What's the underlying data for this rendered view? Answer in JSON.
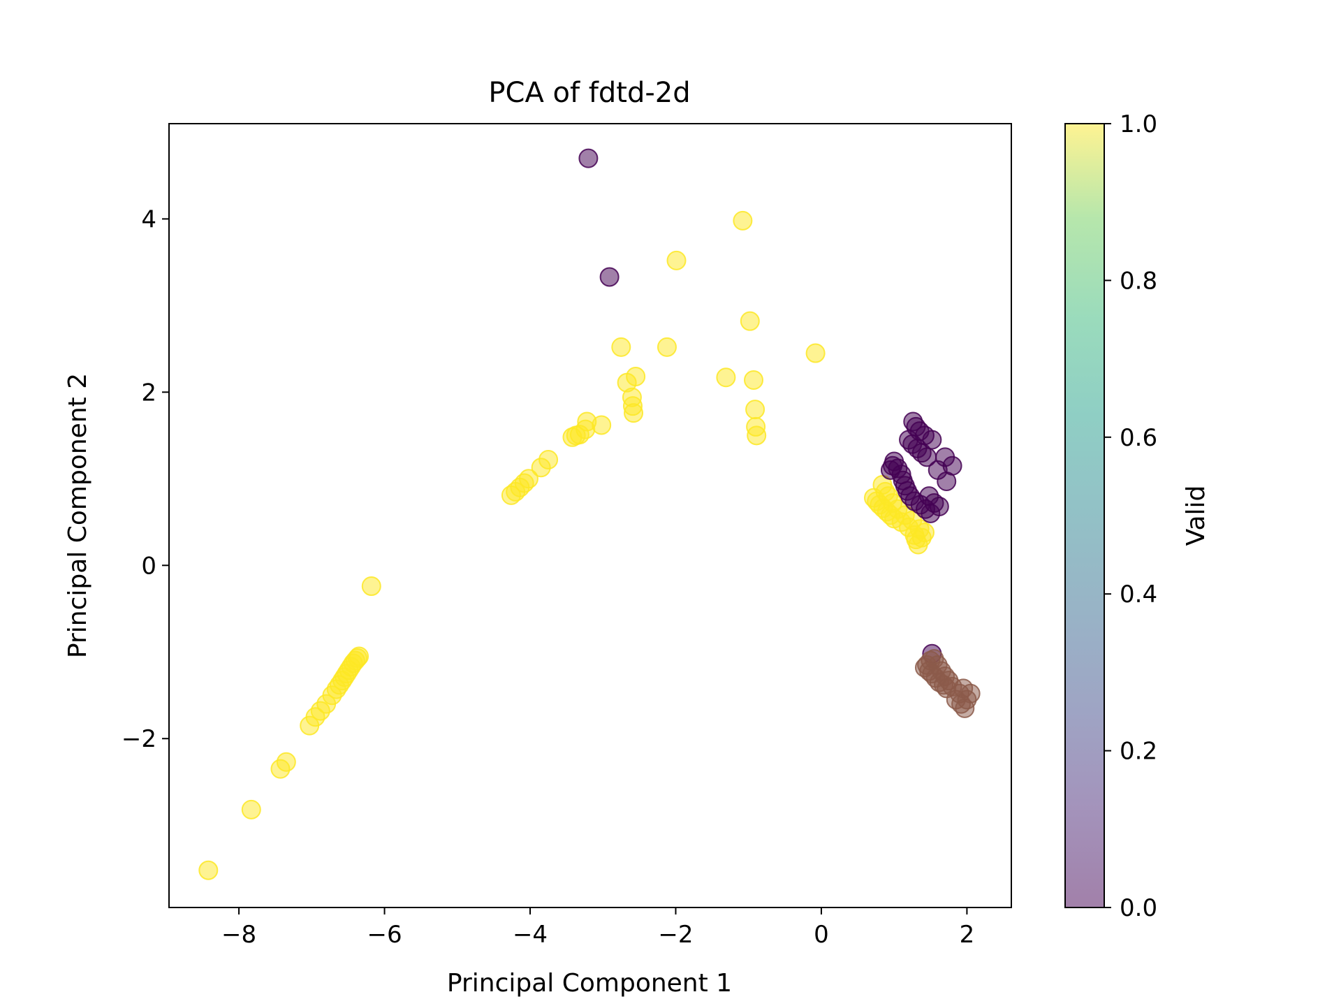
{
  "chart_data": {
    "type": "scatter",
    "title": "PCA of fdtd-2d",
    "xlabel": "Principal Component 1",
    "ylabel": "Principal Component 2",
    "xlim": [
      -8.96,
      2.61
    ],
    "ylim": [
      -3.95,
      5.1
    ],
    "xticks": [
      -8,
      -6,
      -4,
      -2,
      0,
      2
    ],
    "yticks": [
      -2,
      0,
      2,
      4
    ],
    "grid": false,
    "legend": "none",
    "colormap": "viridis",
    "marker_alpha": 0.5,
    "colors": {
      "valid": "#fde725",
      "invalid": "#440154",
      "brown_cluster": "#8b5a4a",
      "axes": "#000000",
      "background": "#ffffff"
    },
    "colorbar": {
      "label": "Valid",
      "range": [
        0.0,
        1.0
      ],
      "ticks": [
        "0.0",
        "0.2",
        "0.4",
        "0.6",
        "0.8",
        "1.0"
      ]
    },
    "series": [
      {
        "value": 1,
        "color": "#fde725",
        "points": [
          [
            -8.42,
            -3.52
          ],
          [
            -7.83,
            -2.82
          ],
          [
            -7.43,
            -2.35
          ],
          [
            -7.35,
            -2.27
          ],
          [
            -7.03,
            -1.85
          ],
          [
            -6.95,
            -1.75
          ],
          [
            -6.88,
            -1.68
          ],
          [
            -6.8,
            -1.6
          ],
          [
            -6.72,
            -1.5
          ],
          [
            -6.66,
            -1.43
          ],
          [
            -6.62,
            -1.38
          ],
          [
            -6.58,
            -1.33
          ],
          [
            -6.55,
            -1.29
          ],
          [
            -6.52,
            -1.25
          ],
          [
            -6.49,
            -1.21
          ],
          [
            -6.46,
            -1.17
          ],
          [
            -6.43,
            -1.13
          ],
          [
            -6.4,
            -1.1
          ],
          [
            -6.37,
            -1.07
          ],
          [
            -6.35,
            -1.05
          ],
          [
            -6.18,
            -0.24
          ],
          [
            -4.26,
            0.81
          ],
          [
            -4.2,
            0.85
          ],
          [
            -4.14,
            0.9
          ],
          [
            -4.08,
            0.95
          ],
          [
            -4.02,
            1.0
          ],
          [
            -3.85,
            1.13
          ],
          [
            -3.75,
            1.22
          ],
          [
            -3.42,
            1.48
          ],
          [
            -3.37,
            1.5
          ],
          [
            -3.32,
            1.51
          ],
          [
            -3.24,
            1.57
          ],
          [
            -3.22,
            1.66
          ],
          [
            -3.02,
            1.62
          ],
          [
            -2.75,
            2.52
          ],
          [
            -2.67,
            2.11
          ],
          [
            -2.6,
            1.94
          ],
          [
            -2.59,
            1.84
          ],
          [
            -2.58,
            1.76
          ],
          [
            -2.55,
            2.18
          ],
          [
            -2.12,
            2.52
          ],
          [
            -1.99,
            3.52
          ],
          [
            -1.31,
            2.17
          ],
          [
            -1.08,
            3.98
          ],
          [
            -0.98,
            2.82
          ],
          [
            -0.93,
            2.14
          ],
          [
            -0.91,
            1.8
          ],
          [
            -0.9,
            1.6
          ],
          [
            -0.89,
            1.5
          ],
          [
            -0.08,
            2.45
          ],
          [
            0.72,
            0.78
          ],
          [
            0.76,
            0.74
          ],
          [
            0.8,
            0.7
          ],
          [
            0.84,
            0.93
          ],
          [
            0.85,
            0.66
          ],
          [
            0.88,
            0.85
          ],
          [
            0.9,
            0.62
          ],
          [
            0.92,
            0.8
          ],
          [
            0.95,
            0.58
          ],
          [
            0.98,
            0.72
          ],
          [
            1.0,
            0.54
          ],
          [
            1.05,
            0.65
          ],
          [
            1.1,
            0.5
          ],
          [
            1.15,
            0.58
          ],
          [
            1.2,
            0.44
          ],
          [
            1.25,
            0.52
          ],
          [
            1.28,
            0.35
          ],
          [
            1.3,
            0.3
          ],
          [
            1.33,
            0.24
          ],
          [
            1.35,
            0.42
          ],
          [
            1.38,
            0.32
          ],
          [
            1.42,
            0.38
          ]
        ]
      },
      {
        "value": 0,
        "color": "#440154",
        "points": [
          [
            -3.2,
            4.7
          ],
          [
            -2.91,
            3.33
          ],
          [
            0.95,
            1.1
          ],
          [
            0.98,
            1.15
          ],
          [
            1.0,
            1.2
          ],
          [
            1.05,
            1.12
          ],
          [
            1.1,
            1.05
          ],
          [
            1.12,
            0.98
          ],
          [
            1.15,
            0.92
          ],
          [
            1.18,
            0.86
          ],
          [
            1.2,
            1.45
          ],
          [
            1.22,
            0.8
          ],
          [
            1.25,
            1.4
          ],
          [
            1.26,
            1.66
          ],
          [
            1.28,
            0.74
          ],
          [
            1.3,
            1.6
          ],
          [
            1.32,
            1.35
          ],
          [
            1.35,
            1.55
          ],
          [
            1.36,
            0.7
          ],
          [
            1.38,
            1.3
          ],
          [
            1.42,
            1.5
          ],
          [
            1.43,
            0.65
          ],
          [
            1.45,
            1.25
          ],
          [
            1.48,
            0.8
          ],
          [
            1.5,
            0.6
          ],
          [
            1.52,
            1.45
          ],
          [
            1.55,
            0.72
          ],
          [
            1.6,
            1.1
          ],
          [
            1.62,
            0.68
          ],
          [
            1.7,
            1.25
          ],
          [
            1.72,
            0.97
          ],
          [
            1.8,
            1.15
          ],
          [
            1.52,
            -1.02
          ]
        ]
      },
      {
        "value": 0,
        "color": "#8b5a4a",
        "points": [
          [
            1.42,
            -1.18
          ],
          [
            1.45,
            -1.15
          ],
          [
            1.48,
            -1.22
          ],
          [
            1.5,
            -1.1
          ],
          [
            1.52,
            -1.25
          ],
          [
            1.55,
            -1.08
          ],
          [
            1.57,
            -1.3
          ],
          [
            1.6,
            -1.15
          ],
          [
            1.62,
            -1.35
          ],
          [
            1.65,
            -1.22
          ],
          [
            1.68,
            -1.38
          ],
          [
            1.7,
            -1.28
          ],
          [
            1.72,
            -1.42
          ],
          [
            1.75,
            -1.33
          ],
          [
            1.8,
            -1.4
          ],
          [
            1.85,
            -1.55
          ],
          [
            1.9,
            -1.48
          ],
          [
            1.92,
            -1.6
          ],
          [
            1.95,
            -1.42
          ],
          [
            1.97,
            -1.65
          ],
          [
            2.0,
            -1.55
          ],
          [
            2.05,
            -1.48
          ]
        ]
      }
    ]
  }
}
